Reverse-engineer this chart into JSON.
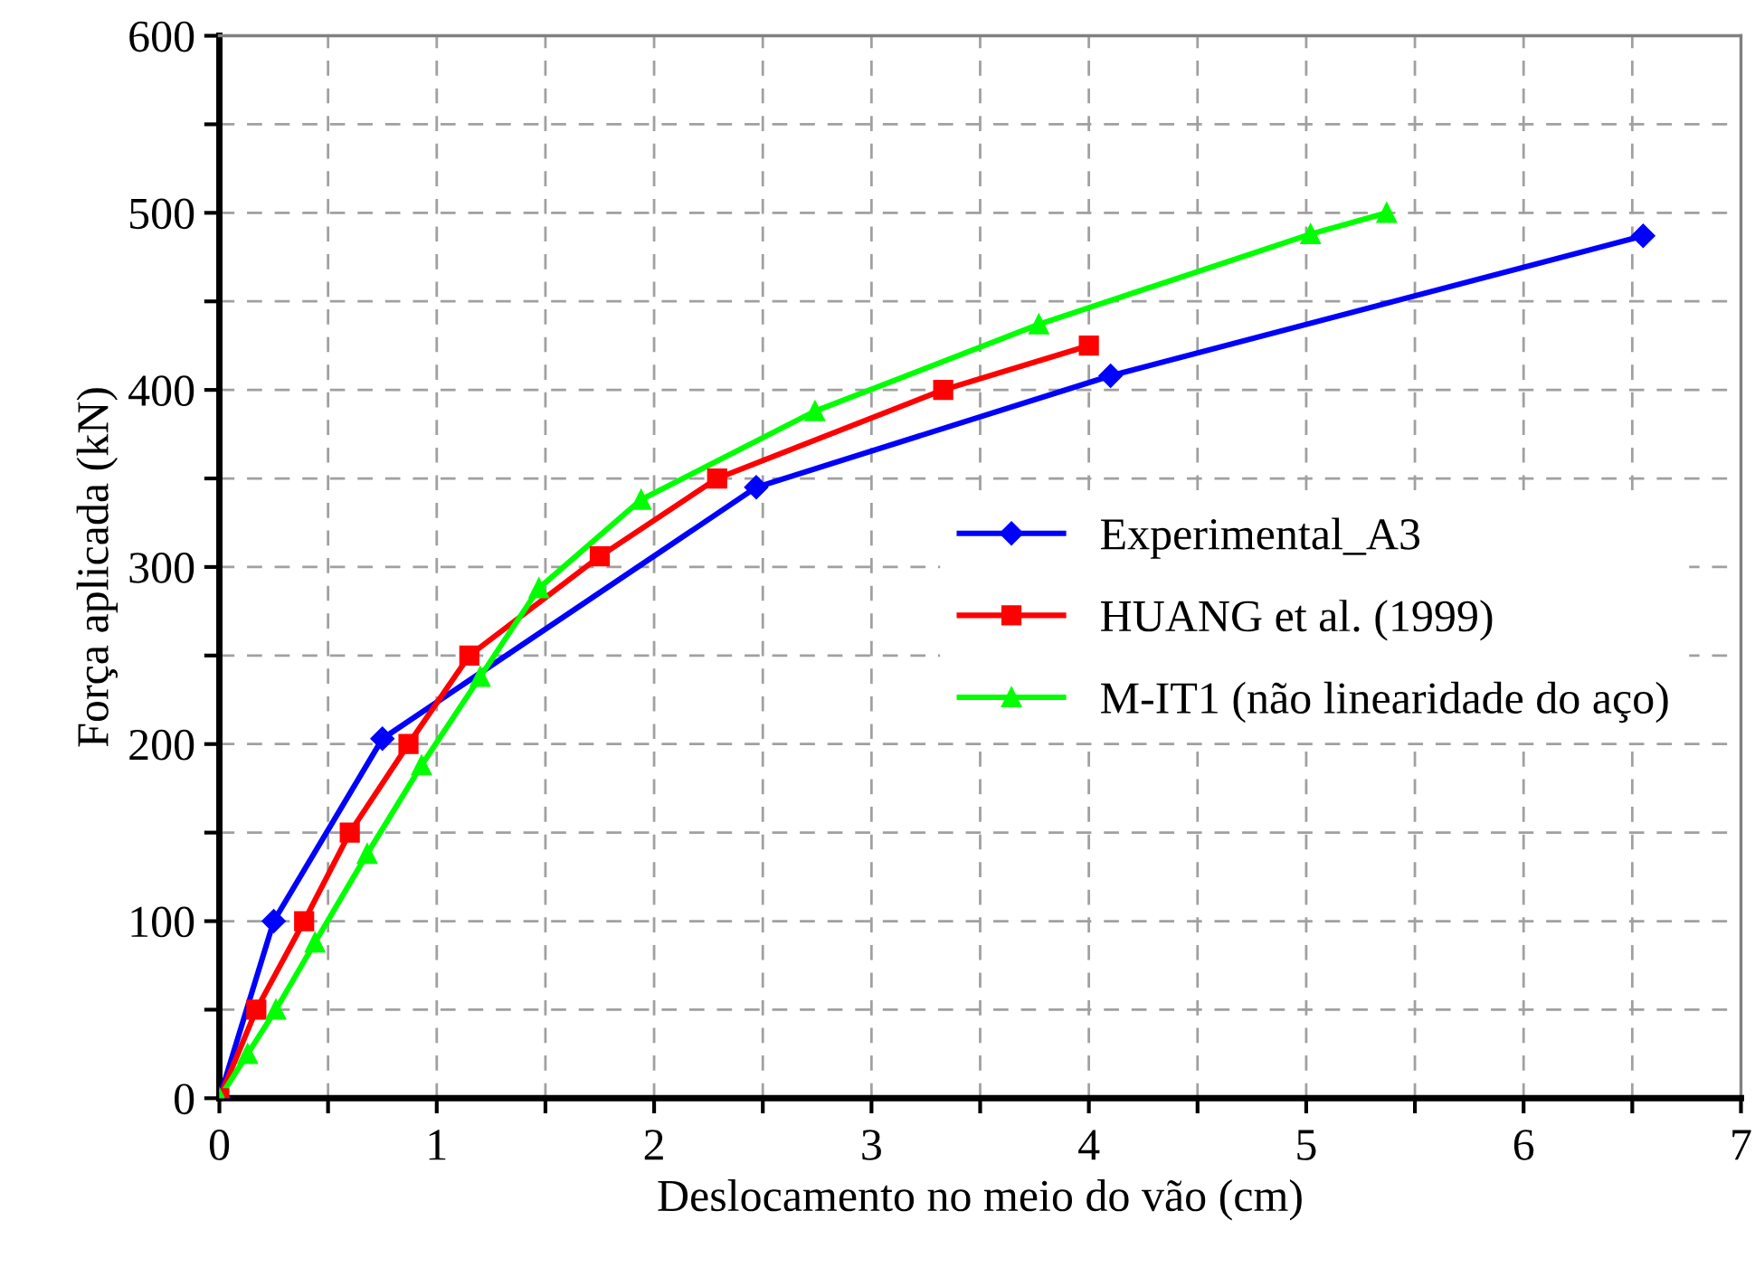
{
  "chart_data": {
    "type": "line",
    "xlabel": "Deslocamento no meio do vão (cm)",
    "ylabel": "Força aplicada (kN)",
    "xlim": [
      0,
      7
    ],
    "ylim": [
      0,
      600
    ],
    "xticks": [
      0,
      {
        "value": 0.5,
        "label": null
      },
      1,
      {
        "value": 1.5,
        "label": null
      },
      2,
      {
        "value": 2.5,
        "label": null
      },
      3,
      {
        "value": 3.5,
        "label": null
      },
      4,
      {
        "value": 4.5,
        "label": null
      },
      5,
      {
        "value": 5.5,
        "label": null
      },
      6,
      {
        "value": 6.5,
        "label": null
      },
      7
    ],
    "yticks": [
      0,
      {
        "value": 50,
        "label": null
      },
      100,
      {
        "value": 150,
        "label": null
      },
      200,
      {
        "value": 250,
        "label": null
      },
      300,
      {
        "value": 350,
        "label": null
      },
      400,
      {
        "value": 450,
        "label": null
      },
      500,
      {
        "value": 550,
        "label": null
      },
      600
    ],
    "grid": true,
    "legend": "right",
    "line_style": "solid",
    "series": [
      {
        "name": "Experimental_A3",
        "color": "#0000ff",
        "marker": "diamond",
        "x": [
          0,
          0.25,
          0.75,
          2.47,
          4.1,
          6.55
        ],
        "values": [
          0,
          100,
          203,
          345,
          408,
          487
        ]
      },
      {
        "name": "HUANG et al. (1999)",
        "color": "#ff0000",
        "marker": "square",
        "x": [
          0,
          0.17,
          0.39,
          0.6,
          0.87,
          1.15,
          1.75,
          2.29,
          3.33,
          4.0
        ],
        "values": [
          0,
          50,
          100,
          150,
          200,
          250,
          306,
          350,
          400,
          425
        ]
      },
      {
        "name": "M-IT1 (não linearidade do aço)",
        "color": "#00ff00",
        "marker": "triangle",
        "x": [
          0,
          0.13,
          0.26,
          0.44,
          0.68,
          0.93,
          1.2,
          1.47,
          1.94,
          2.74,
          3.77,
          5.02,
          5.37
        ],
        "values": [
          0,
          25,
          50,
          88,
          138,
          188,
          238,
          288,
          338,
          388,
          437,
          488,
          500
        ]
      }
    ]
  }
}
